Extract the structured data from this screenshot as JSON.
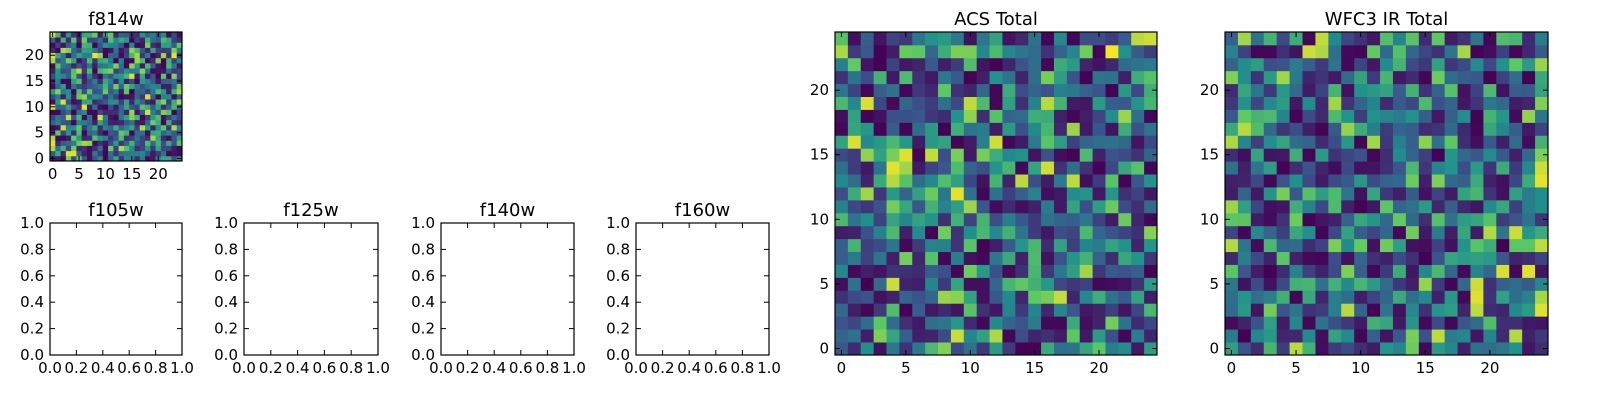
{
  "chart_data": [
    {
      "type": "heatmap",
      "title": "f814w",
      "xlim": [
        -0.5,
        24.5
      ],
      "ylim": [
        -0.5,
        24.5
      ],
      "x_ticks": [
        0,
        5,
        10,
        15,
        20
      ],
      "y_ticks": [
        0,
        5,
        10,
        15,
        20
      ],
      "grid_size": 25,
      "colormap": "viridis",
      "color_range": [
        0,
        1
      ],
      "seed": 814
    },
    {
      "type": "scatter",
      "title": "f105w",
      "xlim": [
        0,
        1
      ],
      "ylim": [
        0,
        1
      ],
      "x_ticks": [
        "0.0",
        "0.2",
        "0.4",
        "0.6",
        "0.8",
        "1.0"
      ],
      "y_ticks": [
        "0.0",
        "0.2",
        "0.4",
        "0.6",
        "0.8",
        "1.0"
      ],
      "series": []
    },
    {
      "type": "scatter",
      "title": "f125w",
      "xlim": [
        0,
        1
      ],
      "ylim": [
        0,
        1
      ],
      "x_ticks": [
        "0.0",
        "0.2",
        "0.4",
        "0.6",
        "0.8",
        "1.0"
      ],
      "y_ticks": [
        "0.0",
        "0.2",
        "0.4",
        "0.6",
        "0.8",
        "1.0"
      ],
      "series": []
    },
    {
      "type": "scatter",
      "title": "f140w",
      "xlim": [
        0,
        1
      ],
      "ylim": [
        0,
        1
      ],
      "x_ticks": [
        "0.0",
        "0.2",
        "0.4",
        "0.6",
        "0.8",
        "1.0"
      ],
      "y_ticks": [
        "0.0",
        "0.2",
        "0.4",
        "0.6",
        "0.8",
        "1.0"
      ],
      "series": []
    },
    {
      "type": "scatter",
      "title": "f160w",
      "xlim": [
        0,
        1
      ],
      "ylim": [
        0,
        1
      ],
      "x_ticks": [
        "0.0",
        "0.2",
        "0.4",
        "0.6",
        "0.8",
        "1.0"
      ],
      "y_ticks": [
        "0.0",
        "0.2",
        "0.4",
        "0.6",
        "0.8",
        "1.0"
      ],
      "series": []
    },
    {
      "type": "heatmap",
      "title": "ACS Total",
      "xlim": [
        -0.5,
        24.5
      ],
      "ylim": [
        -0.5,
        24.5
      ],
      "x_ticks": [
        0,
        5,
        10,
        15,
        20
      ],
      "y_ticks": [
        0,
        5,
        10,
        15,
        20
      ],
      "grid_size": 25,
      "colormap": "viridis",
      "color_range": [
        0,
        1
      ],
      "seed": 2025
    },
    {
      "type": "heatmap",
      "title": "WFC3 IR Total",
      "xlim": [
        -0.5,
        24.5
      ],
      "ylim": [
        -0.5,
        24.5
      ],
      "x_ticks": [
        0,
        5,
        10,
        15,
        20
      ],
      "y_ticks": [
        0,
        5,
        10,
        15,
        20
      ],
      "grid_size": 25,
      "colormap": "viridis",
      "color_range": [
        0,
        1
      ],
      "seed": 3301
    }
  ],
  "colors": {
    "background": "#ffffff",
    "axis": "#000000",
    "viridis": [
      "#440154",
      "#3b528b",
      "#21918c",
      "#5ec962",
      "#fde725"
    ]
  }
}
